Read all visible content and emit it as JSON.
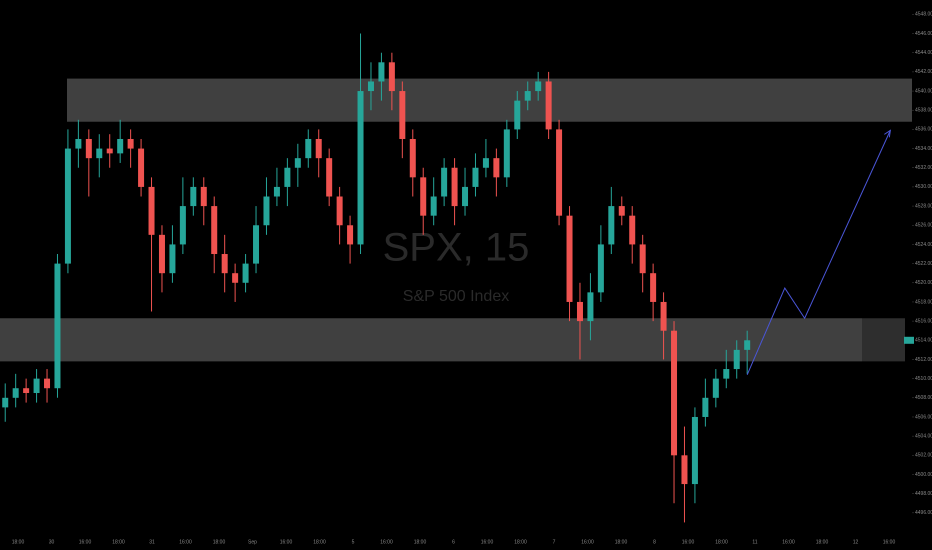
{
  "chart_data": {
    "type": "candlestick",
    "watermark_title": "SPX, 15",
    "watermark_subtitle": "S&P 500 Index",
    "up_color": "#26a69a",
    "down_color": "#ef5350",
    "open": [
      4507,
      4508,
      4509,
      4508.5,
      4510,
      4509,
      4522,
      4534,
      4535,
      4533,
      4534,
      4533.5,
      4535,
      4534,
      4530,
      4525,
      4521,
      4524,
      4528,
      4530,
      4528,
      4523,
      4521,
      4520,
      4522,
      4526,
      4529,
      4530,
      4532,
      4533,
      4535,
      4533,
      4529,
      4526,
      4524,
      4540,
      4541,
      4543,
      4540,
      4535,
      4531,
      4527,
      4529,
      4532,
      4528,
      4530,
      4532,
      4533,
      4531,
      4536,
      4539,
      4540,
      4541,
      4536,
      4527,
      4518,
      4516,
      4519,
      4524,
      4528,
      4527,
      4524,
      4521,
      4518,
      4515,
      4502,
      4499,
      4506,
      4508,
      4510,
      4511,
      4513
    ],
    "high": [
      4509.5,
      4510.5,
      4510,
      4511,
      4511,
      4523,
      4536,
      4537,
      4536,
      4535.5,
      4535.5,
      4537,
      4536,
      4535,
      4531,
      4526,
      4526,
      4531,
      4531,
      4531,
      4529,
      4525,
      4522,
      4523,
      4528,
      4531,
      4532,
      4533,
      4534.5,
      4536,
      4536,
      4534,
      4530,
      4527,
      4546,
      4543,
      4544,
      4544,
      4541,
      4536,
      4532,
      4531,
      4533,
      4533,
      4532,
      4533.5,
      4535,
      4534,
      4537,
      4540,
      4541,
      4542,
      4542,
      4537,
      4528,
      4520,
      4521,
      4526,
      4530,
      4529,
      4528,
      4525,
      4522,
      4519,
      4516,
      4505,
      4507,
      4510,
      4511,
      4513,
      4514,
      4515
    ],
    "low": [
      4505.5,
      4507,
      4507.5,
      4507.5,
      4507.5,
      4508,
      4521,
      4532,
      4529,
      4531,
      4532,
      4532.5,
      4532,
      4529,
      4517,
      4519,
      4520,
      4523,
      4527,
      4526,
      4521,
      4519,
      4518,
      4519,
      4521,
      4525,
      4528,
      4528,
      4530,
      4532,
      4531,
      4528,
      4524,
      4522,
      4523,
      4538,
      4539,
      4538,
      4533,
      4529,
      4525,
      4526,
      4528,
      4526,
      4527,
      4529,
      4531,
      4529,
      4530,
      4535,
      4538,
      4539,
      4535,
      4526,
      4516,
      4512,
      4514,
      4518,
      4523,
      4526,
      4522,
      4519,
      4516,
      4512,
      4497,
      4495,
      4497,
      4505,
      4507,
      4509,
      4510,
      4510.5
    ],
    "close": [
      4508,
      4509,
      4508.5,
      4510,
      4509,
      4522,
      4534,
      4535,
      4533,
      4534,
      4533.5,
      4535,
      4534,
      4530,
      4525,
      4521,
      4524,
      4528,
      4530,
      4528,
      4523,
      4521,
      4520,
      4522,
      4526,
      4529,
      4530,
      4532,
      4533,
      4535,
      4533,
      4529,
      4526,
      4524,
      4540,
      4541,
      4543,
      4540,
      4535,
      4531,
      4527,
      4529,
      4532,
      4528,
      4530,
      4532,
      4533,
      4531,
      4536,
      4539,
      4540,
      4541,
      4536,
      4527,
      4518,
      4516,
      4519,
      4524,
      4528,
      4527,
      4524,
      4521,
      4518,
      4515,
      4502,
      4499,
      4506,
      4508,
      4510,
      4511,
      4513,
      4514
    ],
    "zones": [
      {
        "from": 4536.8,
        "to": 4541.3
      },
      {
        "from": 4511.8,
        "to": 4516.3
      }
    ],
    "projection": {
      "color": "#4a56d8",
      "x": [
        71,
        74.6,
        76.5,
        84.7
      ],
      "values": [
        4510.4,
        4519.45,
        4516.3,
        4535.9
      ]
    },
    "ylim": [
      4494,
      4549.5
    ],
    "yticks": [
      {
        "value": 4548,
        "label": "4548.00"
      },
      {
        "value": 4546,
        "label": "4546.00"
      },
      {
        "value": 4544,
        "label": "4544.00"
      },
      {
        "value": 4542,
        "label": "4542.00"
      },
      {
        "value": 4540,
        "label": "4540.00"
      },
      {
        "value": 4538,
        "label": "4538.00"
      },
      {
        "value": 4536,
        "label": "4536.00"
      },
      {
        "value": 4534,
        "label": "4534.00"
      },
      {
        "value": 4532,
        "label": "4532.00"
      },
      {
        "value": 4530,
        "label": "4530.00"
      },
      {
        "value": 4528,
        "label": "4528.00"
      },
      {
        "value": 4526,
        "label": "4526.00"
      },
      {
        "value": 4524,
        "label": "4524.00"
      },
      {
        "value": 4522,
        "label": "4522.00"
      },
      {
        "value": 4520,
        "label": "4520.00"
      },
      {
        "value": 4518,
        "label": "4518.00"
      },
      {
        "value": 4516,
        "label": "4516.00"
      },
      {
        "value": 4514,
        "label": "4514.00"
      },
      {
        "value": 4512,
        "label": "4512.00"
      },
      {
        "value": 4510,
        "label": "4510.00"
      },
      {
        "value": 4508,
        "label": "4508.00"
      },
      {
        "value": 4506,
        "label": "4506.00"
      },
      {
        "value": 4504,
        "label": "4504.00"
      },
      {
        "value": 4502,
        "label": "4502.00"
      },
      {
        "value": 4500,
        "label": "4500.00"
      },
      {
        "value": 4498,
        "label": "4498.00"
      },
      {
        "value": 4496,
        "label": "4496.00"
      }
    ],
    "xtick_labels": [
      "18:00",
      "30",
      "16:00",
      "18:00",
      "31",
      "16:00",
      "18:00",
      "Sep",
      "16:00",
      "18:00",
      "5",
      "16:00",
      "18:00",
      "6",
      "16:00",
      "18:00",
      "7",
      "16:00",
      "18:00",
      "8",
      "16:00",
      "18:00",
      "11",
      "16:00",
      "18:00",
      "12",
      "16:00"
    ]
  }
}
